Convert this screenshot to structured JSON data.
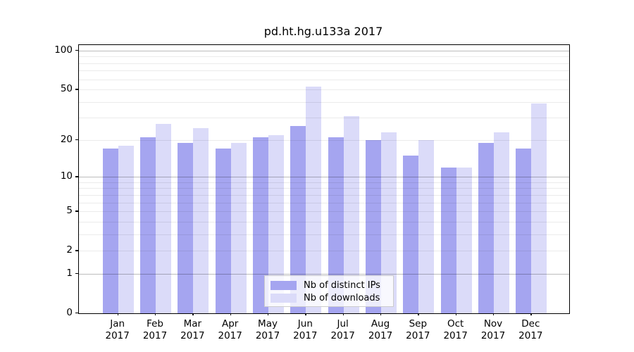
{
  "chart_data": {
    "type": "bar",
    "title": "pd.ht.hg.u133a 2017",
    "categories": [
      "Jan",
      "Feb",
      "Mar",
      "Apr",
      "May",
      "Jun",
      "Jul",
      "Aug",
      "Sep",
      "Oct",
      "Nov",
      "Dec"
    ],
    "category_year": "2017",
    "series": [
      {
        "name": "Nb of distinct IPs",
        "color": "#a5a5f0",
        "values": [
          17,
          21,
          19,
          17,
          21,
          26,
          21,
          20,
          15,
          12,
          19,
          17
        ]
      },
      {
        "name": "Nb of downloads",
        "color": "#dbdbf9",
        "values": [
          18,
          27,
          25,
          19,
          22,
          53,
          31,
          23,
          20,
          12,
          23,
          39
        ]
      }
    ],
    "y_scale": "log1p",
    "y_ticks": [
      100,
      50,
      20,
      10,
      5,
      2,
      1,
      0
    ],
    "grid_minor": [
      2,
      3,
      4,
      5,
      6,
      7,
      8,
      9,
      20,
      30,
      40,
      50,
      60,
      70,
      80,
      90
    ],
    "grid_major": [
      1,
      10,
      100
    ],
    "ylim": [
      0,
      112
    ],
    "legend_position": "lower center",
    "grid_on": true,
    "colors": {
      "grid_minor": "#ebebeb",
      "grid_major": "#bdbdbd",
      "axis": "#000000",
      "background": "#ffffff"
    }
  }
}
